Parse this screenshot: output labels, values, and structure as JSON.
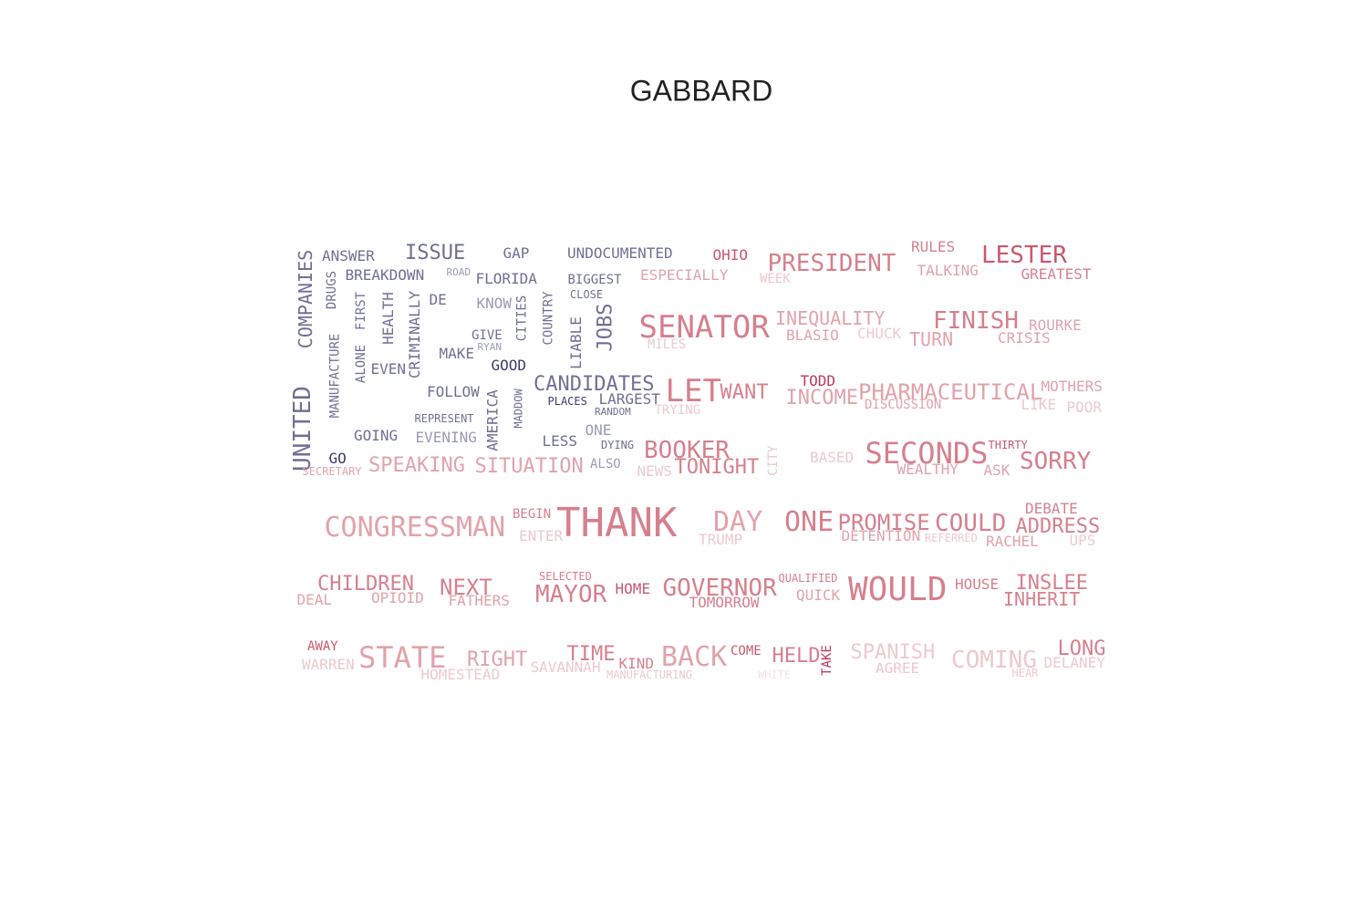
{
  "title": "GABBARD",
  "palette": {
    "navy": "#3b3b6d",
    "slate": "#6f6f95",
    "lavender": "#9a9ab5",
    "crimson": "#c0395a",
    "rose": "#c9586f",
    "pink": "#d67f8d",
    "blush": "#e2a2aa",
    "pale": "#edc9cd",
    "faint": "#f4e1e3"
  },
  "words": [
    {
      "text": "UNITED",
      "color": "slate",
      "rot": -90
    },
    {
      "text": "COMPANIES",
      "color": "slate",
      "rot": -90
    },
    {
      "text": "ANSWER",
      "color": "slate"
    },
    {
      "text": "ISSUE",
      "color": "slate"
    },
    {
      "text": "GAP",
      "color": "slate"
    },
    {
      "text": "UNDOCUMENTED",
      "color": "slate"
    },
    {
      "text": "OHIO",
      "color": "rose"
    },
    {
      "text": "PRESIDENT",
      "color": "pink"
    },
    {
      "text": "RULES",
      "color": "pink"
    },
    {
      "text": "LESTER",
      "color": "rose"
    },
    {
      "text": "BREAKDOWN",
      "color": "slate"
    },
    {
      "text": "ROAD",
      "color": "lavender"
    },
    {
      "text": "FLORIDA",
      "color": "slate"
    },
    {
      "text": "BIGGEST",
      "color": "slate"
    },
    {
      "text": "ESPECIALLY",
      "color": "blush"
    },
    {
      "text": "WEEK",
      "color": "pale"
    },
    {
      "text": "TALKING",
      "color": "blush"
    },
    {
      "text": "GREATEST",
      "color": "pink"
    },
    {
      "text": "DRUGS",
      "color": "slate",
      "rot": -90
    },
    {
      "text": "MANUFACTURE",
      "color": "slate",
      "rot": -90
    },
    {
      "text": "FIRST",
      "color": "slate",
      "rot": -90
    },
    {
      "text": "ALONE",
      "color": "slate",
      "rot": -90
    },
    {
      "text": "HEALTH",
      "color": "slate",
      "rot": -90
    },
    {
      "text": "CRIMINALLY",
      "color": "slate",
      "rot": -90
    },
    {
      "text": "DE",
      "color": "slate"
    },
    {
      "text": "KNOW",
      "color": "lavender"
    },
    {
      "text": "CITIES",
      "color": "slate",
      "rot": -90
    },
    {
      "text": "COUNTRY",
      "color": "slate",
      "rot": -90
    },
    {
      "text": "CLOSE",
      "color": "slate"
    },
    {
      "text": "LIABLE",
      "color": "slate",
      "rot": -90
    },
    {
      "text": "JOBS",
      "color": "slate",
      "rot": -90
    },
    {
      "text": "SENATOR",
      "color": "pink"
    },
    {
      "text": "INEQUALITY",
      "color": "blush"
    },
    {
      "text": "FINISH",
      "color": "pink"
    },
    {
      "text": "ROURKE",
      "color": "blush"
    },
    {
      "text": "GIVE",
      "color": "slate"
    },
    {
      "text": "RYAN",
      "color": "lavender"
    },
    {
      "text": "BLASIO",
      "color": "blush"
    },
    {
      "text": "CHUCK",
      "color": "pale"
    },
    {
      "text": "TURN",
      "color": "blush"
    },
    {
      "text": "CRISIS",
      "color": "blush"
    },
    {
      "text": "MILES",
      "color": "pale"
    },
    {
      "text": "EVEN",
      "color": "slate"
    },
    {
      "text": "MAKE",
      "color": "slate"
    },
    {
      "text": "GOOD",
      "color": "navy"
    },
    {
      "text": "CANDIDATES",
      "color": "slate"
    },
    {
      "text": "LET",
      "color": "pink"
    },
    {
      "text": "WANT",
      "color": "pink"
    },
    {
      "text": "TODD",
      "color": "crimson"
    },
    {
      "text": "INCOME",
      "color": "blush"
    },
    {
      "text": "PHARMACEUTICAL",
      "color": "blush"
    },
    {
      "text": "MOTHERS",
      "color": "blush"
    },
    {
      "text": "FOLLOW",
      "color": "slate"
    },
    {
      "text": "PLACES",
      "color": "navy"
    },
    {
      "text": "LARGEST",
      "color": "slate"
    },
    {
      "text": "DISCUSSION",
      "color": "blush"
    },
    {
      "text": "LIKE",
      "color": "pale"
    },
    {
      "text": "POOR",
      "color": "pale"
    },
    {
      "text": "AMERICA",
      "color": "slate",
      "rot": -90
    },
    {
      "text": "MADDOW",
      "color": "slate",
      "rot": -90
    },
    {
      "text": "RANDOM",
      "color": "slate"
    },
    {
      "text": "TRYING",
      "color": "pale"
    },
    {
      "text": "REPRESENT",
      "color": "slate"
    },
    {
      "text": "GOING",
      "color": "slate"
    },
    {
      "text": "EVENING",
      "color": "lavender"
    },
    {
      "text": "ONE",
      "color": "lavender"
    },
    {
      "text": "LESS",
      "color": "slate"
    },
    {
      "text": "DYING",
      "color": "slate"
    },
    {
      "text": "BOOKER",
      "color": "pink"
    },
    {
      "text": "CITY",
      "color": "pale",
      "rot": -90
    },
    {
      "text": "SECONDS",
      "color": "pink"
    },
    {
      "text": "THIRTY",
      "color": "rose"
    },
    {
      "text": "GO",
      "color": "navy"
    },
    {
      "text": "SECRETARY",
      "color": "blush"
    },
    {
      "text": "SPEAKING",
      "color": "blush"
    },
    {
      "text": "SITUATION",
      "color": "blush"
    },
    {
      "text": "ALSO",
      "color": "lavender"
    },
    {
      "text": "NEWS",
      "color": "pale"
    },
    {
      "text": "TONIGHT",
      "color": "pink"
    },
    {
      "text": "BASED",
      "color": "pale"
    },
    {
      "text": "WEALTHY",
      "color": "blush"
    },
    {
      "text": "ASK",
      "color": "blush"
    },
    {
      "text": "SORRY",
      "color": "pink"
    },
    {
      "text": "BEGIN",
      "color": "pink"
    },
    {
      "text": "DEBATE",
      "color": "pink"
    },
    {
      "text": "CONGRESSMAN",
      "color": "blush"
    },
    {
      "text": "THANK",
      "color": "pink"
    },
    {
      "text": "DAY",
      "color": "blush"
    },
    {
      "text": "ONE",
      "color": "pink"
    },
    {
      "text": "PROMISE",
      "color": "pink"
    },
    {
      "text": "COULD",
      "color": "pink"
    },
    {
      "text": "ADDRESS",
      "color": "pink"
    },
    {
      "text": "ENTER",
      "color": "pale"
    },
    {
      "text": "TRUMP",
      "color": "pale"
    },
    {
      "text": "DETENTION",
      "color": "blush"
    },
    {
      "text": "REFERRED",
      "color": "pale"
    },
    {
      "text": "RACHEL",
      "color": "blush"
    },
    {
      "text": "UPS",
      "color": "pale"
    },
    {
      "text": "SELECTED",
      "color": "pink"
    },
    {
      "text": "QUALIFIED",
      "color": "pink"
    },
    {
      "text": "CHILDREN",
      "color": "pink"
    },
    {
      "text": "NEXT",
      "color": "pink"
    },
    {
      "text": "MAYOR",
      "color": "pink"
    },
    {
      "text": "HOME",
      "color": "rose"
    },
    {
      "text": "GOVERNOR",
      "color": "pink"
    },
    {
      "text": "WOULD",
      "color": "pink"
    },
    {
      "text": "HOUSE",
      "color": "pink"
    },
    {
      "text": "INSLEE",
      "color": "pink"
    },
    {
      "text": "DEAL",
      "color": "blush"
    },
    {
      "text": "OPIOID",
      "color": "blush"
    },
    {
      "text": "FATHERS",
      "color": "blush"
    },
    {
      "text": "TOMORROW",
      "color": "pink"
    },
    {
      "text": "QUICK",
      "color": "blush"
    },
    {
      "text": "INHERIT",
      "color": "pink"
    },
    {
      "text": "AWAY",
      "color": "rose"
    },
    {
      "text": "STATE",
      "color": "blush"
    },
    {
      "text": "RIGHT",
      "color": "blush"
    },
    {
      "text": "TIME",
      "color": "pink"
    },
    {
      "text": "BACK",
      "color": "blush"
    },
    {
      "text": "COME",
      "color": "rose"
    },
    {
      "text": "HELD",
      "color": "pink"
    },
    {
      "text": "TAKE",
      "color": "crimson",
      "rot": -90
    },
    {
      "text": "SPANISH",
      "color": "pale"
    },
    {
      "text": "COMING",
      "color": "pale"
    },
    {
      "text": "LONG",
      "color": "pink"
    },
    {
      "text": "WARREN",
      "color": "pale"
    },
    {
      "text": "SAVANNAH",
      "color": "pale"
    },
    {
      "text": "KIND",
      "color": "pink"
    },
    {
      "text": "AGREE",
      "color": "pale"
    },
    {
      "text": "DELANEY",
      "color": "pale"
    },
    {
      "text": "HOMESTEAD",
      "color": "pale"
    },
    {
      "text": "MANUFACTURING",
      "color": "pale"
    },
    {
      "text": "WHITE",
      "color": "faint"
    },
    {
      "text": "HEAR",
      "color": "pale"
    }
  ]
}
